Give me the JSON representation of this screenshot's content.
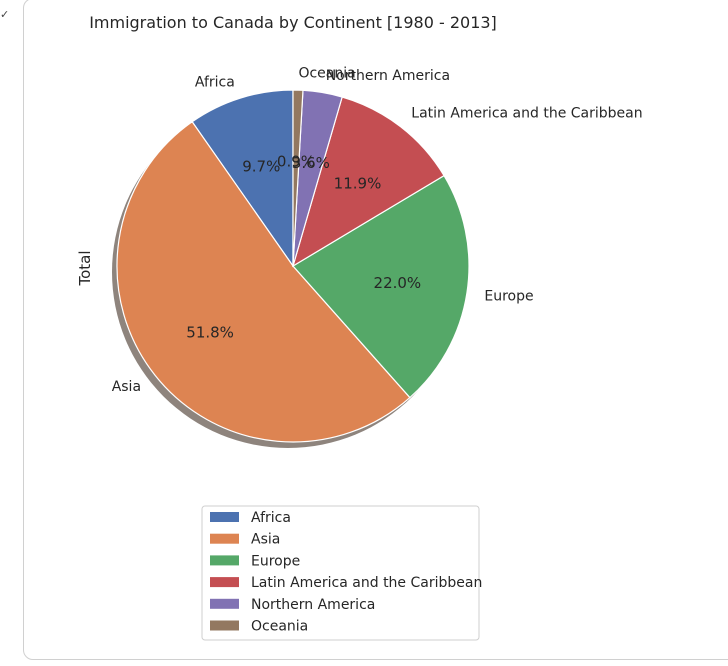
{
  "cell": {
    "collapse_icon": "chevron-down-icon"
  },
  "chart_data": {
    "type": "pie",
    "title": "Immigration to Canada by Continent [1980 - 2013]",
    "ylabel": "Total",
    "categories": [
      "Africa",
      "Asia",
      "Europe",
      "Latin America and the Caribbean",
      "Northern America",
      "Oceania"
    ],
    "values": [
      9.7,
      51.8,
      22.0,
      11.9,
      3.6,
      0.9
    ],
    "percent_labels": [
      "9.7%",
      "51.8%",
      "22.0%",
      "11.9%",
      "3.6%",
      "0.9%"
    ],
    "colors": [
      "#4c72b0",
      "#dd8452",
      "#55a868",
      "#c44e52",
      "#8172b3",
      "#937860"
    ],
    "startangle": 90,
    "shadow": true,
    "legend_placement": "lower-center"
  }
}
